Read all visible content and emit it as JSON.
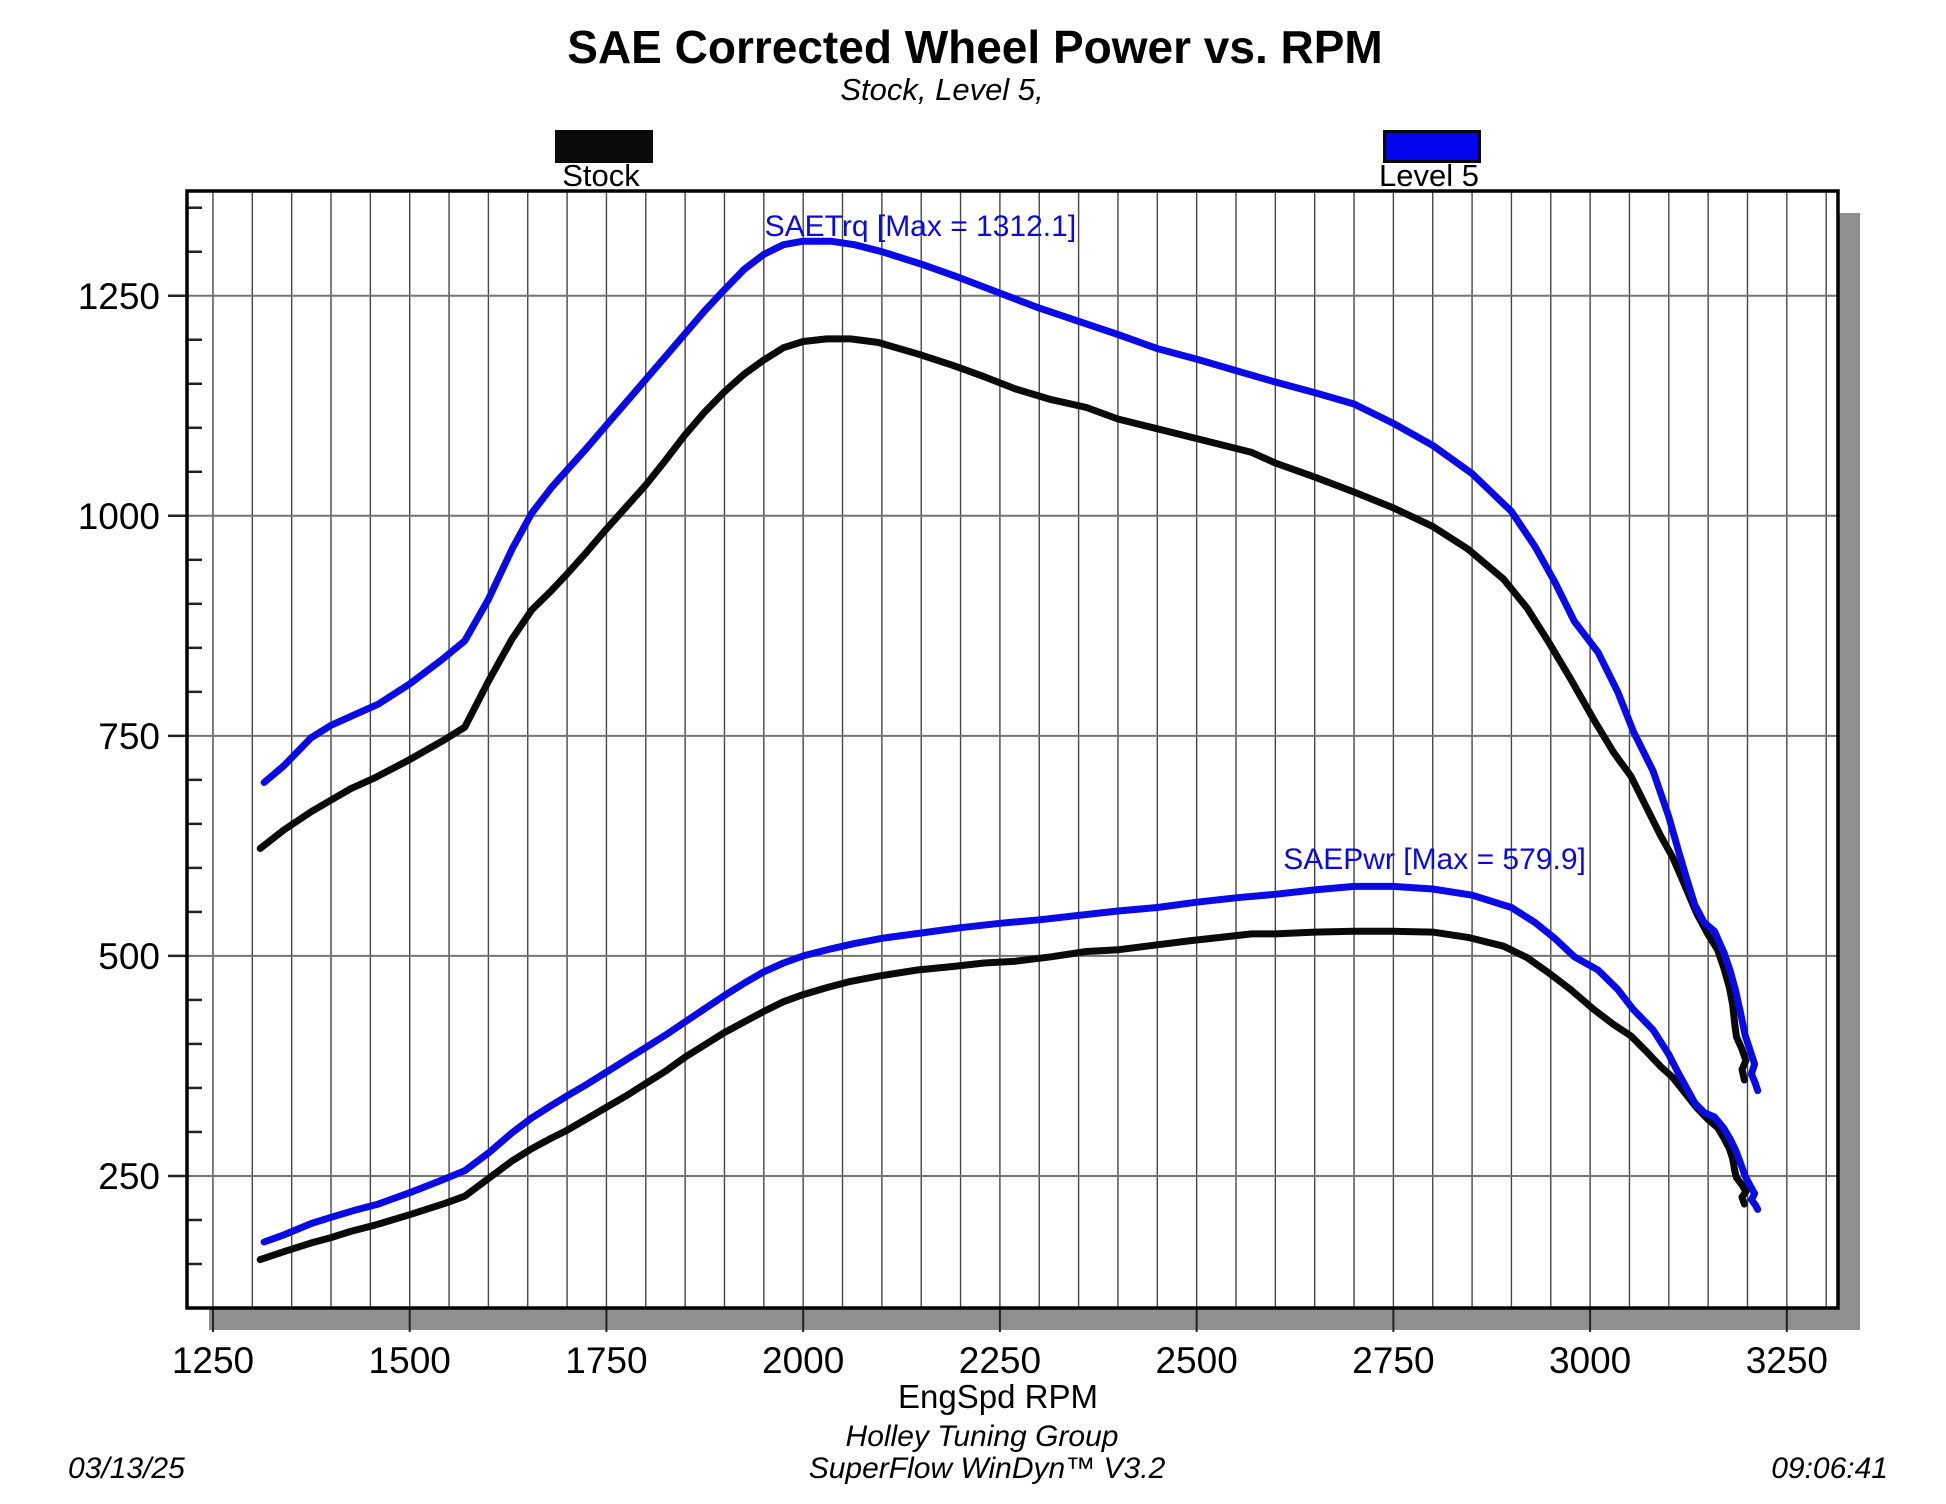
{
  "header": {
    "title": "SAE Corrected Wheel Power vs. RPM",
    "subtitle": "Stock, Level 5,"
  },
  "legend": {
    "items": [
      {
        "label": "Stock",
        "color": "#0a0a0a"
      },
      {
        "label": "Level 5",
        "color": "#0404ee"
      }
    ]
  },
  "annotations": [
    {
      "id": "trq-max",
      "text": "SAETrq [Max = 1312.1]",
      "color": "#0a0ae0",
      "anchor_rpm": 1951,
      "anchor_val": 1332
    },
    {
      "id": "pwr-max",
      "text": "SAEPwr [Max = 579.9]",
      "color": "#0a0ae0",
      "anchor_rpm": 2610,
      "anchor_val": 612
    }
  ],
  "footer": {
    "group": "Holley Tuning Group",
    "software": "SuperFlow WinDyn™ V3.2",
    "date": "03/13/25",
    "time": "09:06:41"
  },
  "chart_data": {
    "type": "line",
    "title": "SAE Corrected Wheel Power vs. RPM",
    "subtitle": "Stock, Level 5,",
    "xlabel": "EngSpd RPM",
    "ylabel": "",
    "xlim": [
      1217,
      3315
    ],
    "ylim": [
      100,
      1369
    ],
    "x_major_ticks": [
      1250,
      1500,
      1750,
      2000,
      2250,
      2500,
      2750,
      3000,
      3250
    ],
    "y_major_ticks": [
      250,
      500,
      750,
      1000,
      1250
    ],
    "x_minor_step": 50,
    "y_minor_step": 50,
    "grid": {
      "vertical_minor": true,
      "horizontal_major": true
    },
    "legend_position": "top",
    "series": [
      {
        "name": "Stock SAETrq",
        "color": "#0a0a0a",
        "width": 7,
        "points": [
          [
            1310,
            622
          ],
          [
            1340,
            643
          ],
          [
            1375,
            664
          ],
          [
            1400,
            677
          ],
          [
            1425,
            690
          ],
          [
            1455,
            702
          ],
          [
            1500,
            723
          ],
          [
            1545,
            746
          ],
          [
            1570,
            760
          ],
          [
            1600,
            812
          ],
          [
            1630,
            860
          ],
          [
            1655,
            893
          ],
          [
            1680,
            915
          ],
          [
            1700,
            934
          ],
          [
            1725,
            959
          ],
          [
            1750,
            985
          ],
          [
            1775,
            1010
          ],
          [
            1800,
            1035
          ],
          [
            1825,
            1063
          ],
          [
            1850,
            1092
          ],
          [
            1875,
            1118
          ],
          [
            1900,
            1141
          ],
          [
            1925,
            1161
          ],
          [
            1950,
            1177
          ],
          [
            1975,
            1191
          ],
          [
            2000,
            1198
          ],
          [
            2030,
            1201
          ],
          [
            2060,
            1201
          ],
          [
            2095,
            1197
          ],
          [
            2145,
            1184
          ],
          [
            2190,
            1171
          ],
          [
            2230,
            1158
          ],
          [
            2270,
            1144
          ],
          [
            2315,
            1132
          ],
          [
            2360,
            1123
          ],
          [
            2400,
            1110
          ],
          [
            2445,
            1100
          ],
          [
            2490,
            1090
          ],
          [
            2530,
            1081
          ],
          [
            2570,
            1072
          ],
          [
            2600,
            1060
          ],
          [
            2650,
            1044
          ],
          [
            2700,
            1027
          ],
          [
            2750,
            1009
          ],
          [
            2800,
            988
          ],
          [
            2845,
            962
          ],
          [
            2890,
            928
          ],
          [
            2920,
            895
          ],
          [
            2947,
            857
          ],
          [
            2975,
            815
          ],
          [
            3005,
            768
          ],
          [
            3030,
            731
          ],
          [
            3052,
            704
          ],
          [
            3072,
            668
          ],
          [
            3090,
            636
          ],
          [
            3105,
            612
          ],
          [
            3120,
            581
          ],
          [
            3135,
            549
          ],
          [
            3150,
            524
          ],
          [
            3162,
            507
          ],
          [
            3170,
            486
          ],
          [
            3177,
            464
          ],
          [
            3181,
            445
          ],
          [
            3184,
            421
          ],
          [
            3186,
            408
          ],
          [
            3193,
            394
          ],
          [
            3198,
            381
          ],
          [
            3193,
            371
          ],
          [
            3196,
            359
          ]
        ]
      },
      {
        "name": "Stock SAEPwr",
        "color": "#0a0a0a",
        "width": 7,
        "points": [
          [
            1310,
            155
          ],
          [
            1340,
            164
          ],
          [
            1375,
            174
          ],
          [
            1400,
            180
          ],
          [
            1425,
            187
          ],
          [
            1455,
            194
          ],
          [
            1500,
            206
          ],
          [
            1545,
            219
          ],
          [
            1570,
            227
          ],
          [
            1600,
            247
          ],
          [
            1630,
            267
          ],
          [
            1655,
            281
          ],
          [
            1680,
            293
          ],
          [
            1700,
            302
          ],
          [
            1725,
            315
          ],
          [
            1750,
            328
          ],
          [
            1775,
            341
          ],
          [
            1800,
            355
          ],
          [
            1825,
            369
          ],
          [
            1850,
            385
          ],
          [
            1875,
            399
          ],
          [
            1900,
            413
          ],
          [
            1925,
            425
          ],
          [
            1950,
            437
          ],
          [
            1975,
            448
          ],
          [
            2000,
            456
          ],
          [
            2030,
            464
          ],
          [
            2060,
            471
          ],
          [
            2095,
            477
          ],
          [
            2145,
            484
          ],
          [
            2190,
            488
          ],
          [
            2230,
            492
          ],
          [
            2270,
            494
          ],
          [
            2315,
            499
          ],
          [
            2360,
            505
          ],
          [
            2400,
            507
          ],
          [
            2445,
            512
          ],
          [
            2490,
            517
          ],
          [
            2530,
            521
          ],
          [
            2570,
            525
          ],
          [
            2600,
            525
          ],
          [
            2650,
            527
          ],
          [
            2700,
            528
          ],
          [
            2750,
            528
          ],
          [
            2800,
            527
          ],
          [
            2845,
            521
          ],
          [
            2890,
            511
          ],
          [
            2920,
            498
          ],
          [
            2947,
            481
          ],
          [
            2975,
            462
          ],
          [
            3005,
            439
          ],
          [
            3030,
            422
          ],
          [
            3052,
            409
          ],
          [
            3072,
            391
          ],
          [
            3090,
            374
          ],
          [
            3105,
            362
          ],
          [
            3120,
            345
          ],
          [
            3135,
            328
          ],
          [
            3150,
            314
          ],
          [
            3162,
            305
          ],
          [
            3170,
            293
          ],
          [
            3177,
            281
          ],
          [
            3181,
            270
          ],
          [
            3184,
            255
          ],
          [
            3186,
            248
          ],
          [
            3193,
            240
          ],
          [
            3198,
            232
          ],
          [
            3193,
            226
          ],
          [
            3196,
            218
          ]
        ]
      },
      {
        "name": "Level 5 SAETrq",
        "color": "#0a0ae6",
        "width": 7,
        "max": 1312.1,
        "points": [
          [
            1315,
            697
          ],
          [
            1340,
            716
          ],
          [
            1375,
            748
          ],
          [
            1400,
            762
          ],
          [
            1430,
            774
          ],
          [
            1460,
            786
          ],
          [
            1500,
            809
          ],
          [
            1540,
            836
          ],
          [
            1570,
            858
          ],
          [
            1600,
            905
          ],
          [
            1630,
            962
          ],
          [
            1655,
            1003
          ],
          [
            1680,
            1032
          ],
          [
            1700,
            1052
          ],
          [
            1725,
            1077
          ],
          [
            1750,
            1103
          ],
          [
            1775,
            1129
          ],
          [
            1800,
            1155
          ],
          [
            1825,
            1181
          ],
          [
            1850,
            1207
          ],
          [
            1875,
            1233
          ],
          [
            1900,
            1257
          ],
          [
            1925,
            1280
          ],
          [
            1950,
            1297
          ],
          [
            1975,
            1308
          ],
          [
            2000,
            1312
          ],
          [
            2035,
            1312
          ],
          [
            2065,
            1308
          ],
          [
            2100,
            1300
          ],
          [
            2150,
            1286
          ],
          [
            2200,
            1270
          ],
          [
            2250,
            1253
          ],
          [
            2300,
            1236
          ],
          [
            2350,
            1221
          ],
          [
            2400,
            1206
          ],
          [
            2450,
            1190
          ],
          [
            2500,
            1178
          ],
          [
            2550,
            1165
          ],
          [
            2600,
            1152
          ],
          [
            2650,
            1140
          ],
          [
            2700,
            1127
          ],
          [
            2750,
            1105
          ],
          [
            2800,
            1080
          ],
          [
            2850,
            1048
          ],
          [
            2900,
            1005
          ],
          [
            2930,
            965
          ],
          [
            2955,
            925
          ],
          [
            2980,
            880
          ],
          [
            3010,
            845
          ],
          [
            3035,
            800
          ],
          [
            3055,
            755
          ],
          [
            3080,
            710
          ],
          [
            3100,
            658
          ],
          [
            3112,
            620
          ],
          [
            3122,
            590
          ],
          [
            3133,
            558
          ],
          [
            3145,
            538
          ],
          [
            3158,
            528
          ],
          [
            3170,
            504
          ],
          [
            3178,
            483
          ],
          [
            3185,
            460
          ],
          [
            3191,
            436
          ],
          [
            3197,
            410
          ],
          [
            3204,
            391
          ],
          [
            3209,
            377
          ],
          [
            3205,
            366
          ],
          [
            3210,
            355
          ],
          [
            3213,
            347
          ]
        ]
      },
      {
        "name": "Level 5 SAEPwr",
        "color": "#0a0ae6",
        "width": 7,
        "max": 579.9,
        "points": [
          [
            1315,
            175
          ],
          [
            1340,
            183
          ],
          [
            1375,
            196
          ],
          [
            1400,
            203
          ],
          [
            1430,
            211
          ],
          [
            1460,
            218
          ],
          [
            1500,
            231
          ],
          [
            1540,
            245
          ],
          [
            1570,
            256
          ],
          [
            1600,
            276
          ],
          [
            1630,
            299
          ],
          [
            1655,
            316
          ],
          [
            1680,
            330
          ],
          [
            1700,
            341
          ],
          [
            1725,
            354
          ],
          [
            1750,
            368
          ],
          [
            1775,
            382
          ],
          [
            1800,
            396
          ],
          [
            1825,
            410
          ],
          [
            1850,
            425
          ],
          [
            1875,
            440
          ],
          [
            1900,
            455
          ],
          [
            1925,
            469
          ],
          [
            1950,
            482
          ],
          [
            1975,
            492
          ],
          [
            2000,
            500
          ],
          [
            2035,
            508
          ],
          [
            2065,
            514
          ],
          [
            2100,
            520
          ],
          [
            2150,
            526
          ],
          [
            2200,
            532
          ],
          [
            2250,
            537
          ],
          [
            2300,
            541
          ],
          [
            2350,
            546
          ],
          [
            2400,
            551
          ],
          [
            2450,
            555
          ],
          [
            2500,
            561
          ],
          [
            2550,
            566
          ],
          [
            2600,
            570
          ],
          [
            2650,
            575
          ],
          [
            2700,
            579
          ],
          [
            2750,
            579
          ],
          [
            2800,
            576
          ],
          [
            2850,
            569
          ],
          [
            2900,
            555
          ],
          [
            2930,
            538
          ],
          [
            2955,
            520
          ],
          [
            2980,
            499
          ],
          [
            3010,
            484
          ],
          [
            3035,
            462
          ],
          [
            3055,
            439
          ],
          [
            3080,
            416
          ],
          [
            3100,
            388
          ],
          [
            3112,
            367
          ],
          [
            3122,
            351
          ],
          [
            3133,
            333
          ],
          [
            3145,
            322
          ],
          [
            3158,
            317
          ],
          [
            3170,
            304
          ],
          [
            3178,
            292
          ],
          [
            3185,
            279
          ],
          [
            3191,
            265
          ],
          [
            3197,
            250
          ],
          [
            3204,
            238
          ],
          [
            3209,
            230
          ],
          [
            3205,
            223
          ],
          [
            3210,
            217
          ],
          [
            3213,
            212
          ]
        ]
      }
    ]
  }
}
